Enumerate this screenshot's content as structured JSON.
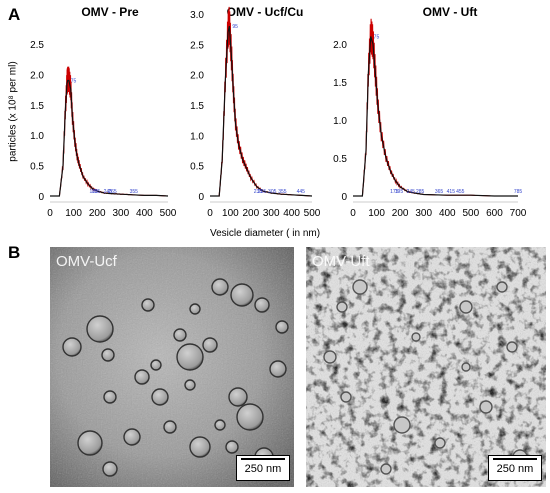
{
  "panels": {
    "a": "A",
    "b": "B"
  },
  "y_axis_label": "particles (x 10⁸ per ml)",
  "x_axis_label": "Vesicle diameter ( in nm)",
  "chart_data": [
    {
      "type": "line",
      "title": "OMV - Pre",
      "ylim": [
        0,
        2.5
      ],
      "xlim": [
        0,
        500
      ],
      "yticks": [
        "0",
        "0.5",
        "1.0",
        "1.5",
        "2.0",
        "2.5"
      ],
      "xticks": [
        "0",
        "100",
        "200",
        "300",
        "400",
        "500"
      ],
      "peak_labels": [
        "75",
        "185",
        "195",
        "245",
        "265",
        "355"
      ],
      "series": [
        {
          "x": [
            0,
            40,
            55,
            65,
            72,
            75,
            80,
            88,
            95,
            105,
            115,
            125,
            140,
            160,
            180,
            200,
            230,
            260,
            300,
            350,
            400,
            450,
            500
          ],
          "y": [
            0,
            0,
            0.5,
            1.4,
            1.85,
            1.9,
            1.9,
            1.75,
            1.3,
            0.9,
            0.65,
            0.5,
            0.32,
            0.2,
            0.12,
            0.08,
            0.05,
            0.04,
            0.03,
            0.02,
            0.01,
            0.01,
            0
          ]
        }
      ]
    },
    {
      "type": "line",
      "title": "OMV - Ucf/Cu",
      "ylim": [
        0,
        3.0
      ],
      "xlim": [
        0,
        500
      ],
      "yticks": [
        "0",
        "0.5",
        "1.0",
        "1.5",
        "2.0",
        "2.5",
        "3.0"
      ],
      "xticks": [
        "0",
        "100",
        "200",
        "300",
        "400",
        "500"
      ],
      "peak_labels": [
        "95",
        "235",
        "255",
        "305",
        "355",
        "445"
      ],
      "series": [
        {
          "x": [
            0,
            45,
            60,
            75,
            88,
            95,
            105,
            115,
            125,
            140,
            160,
            180,
            200,
            230,
            260,
            300,
            350,
            400,
            450,
            500
          ],
          "y": [
            0,
            0,
            0.6,
            1.9,
            2.7,
            2.8,
            2.3,
            1.7,
            1.2,
            0.85,
            0.6,
            0.45,
            0.3,
            0.15,
            0.08,
            0.05,
            0.03,
            0.02,
            0.01,
            0
          ]
        }
      ]
    },
    {
      "type": "line",
      "title": "OMV - Uft",
      "ylim": [
        0,
        2.5
      ],
      "xlim": [
        0,
        700
      ],
      "yticks": [
        "0",
        "0.5",
        "1.0",
        "1.5",
        "2.0"
      ],
      "xticks": [
        "0",
        "100",
        "200",
        "300",
        "400",
        "500",
        "600",
        "700"
      ],
      "peak_labels": [
        "75",
        "175",
        "195",
        "245",
        "285",
        "365",
        "415",
        "455",
        "785"
      ],
      "series": [
        {
          "x": [
            0,
            40,
            55,
            65,
            75,
            85,
            95,
            105,
            120,
            140,
            160,
            180,
            200,
            230,
            260,
            300,
            400,
            500,
            600,
            700
          ],
          "y": [
            0,
            0,
            0.6,
            1.6,
            2.1,
            2.0,
            1.6,
            1.2,
            0.8,
            0.5,
            0.32,
            0.2,
            0.12,
            0.06,
            0.04,
            0.02,
            0.01,
            0.01,
            0,
            0
          ]
        }
      ]
    }
  ],
  "images": [
    {
      "label": "OMV-Ucf",
      "scale": "250 nm"
    },
    {
      "label": "OMV-Uft",
      "scale": "250 nm"
    }
  ]
}
